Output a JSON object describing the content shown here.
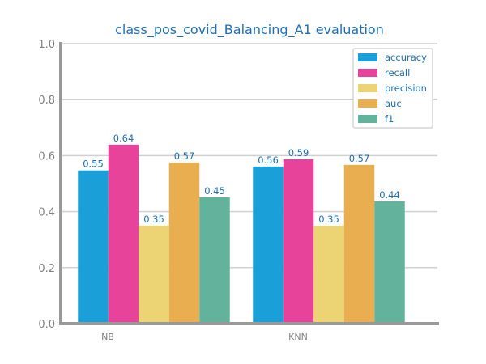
{
  "chart_data": {
    "type": "bar",
    "title": "class_pos_covid_Balancing_A1 evaluation",
    "xlabel": "",
    "ylabel": "",
    "categories": [
      "NB",
      "KNN"
    ],
    "ylim": [
      0,
      1.0
    ],
    "yticks": [
      "0.0",
      "0.2",
      "0.4",
      "0.6",
      "0.8",
      "1.0"
    ],
    "grid": true,
    "legend_position": "top-right",
    "series": [
      {
        "name": "accuracy",
        "color": "#1a9fd9",
        "values": [
          0.547,
          0.561
        ],
        "labels": [
          "0.55",
          "0.56"
        ]
      },
      {
        "name": "recall",
        "color": "#e8439b",
        "values": [
          0.639,
          0.587
        ],
        "labels": [
          "0.64",
          "0.59"
        ]
      },
      {
        "name": "precision",
        "color": "#ecd475",
        "values": [
          0.35,
          0.349
        ],
        "labels": [
          "0.35",
          "0.35"
        ]
      },
      {
        "name": "auc",
        "color": "#e8ae50",
        "values": [
          0.575,
          0.567
        ],
        "labels": [
          "0.57",
          "0.57"
        ]
      },
      {
        "name": "f1",
        "color": "#63b29c",
        "values": [
          0.451,
          0.437
        ],
        "labels": [
          "0.45",
          "0.44"
        ]
      }
    ]
  }
}
